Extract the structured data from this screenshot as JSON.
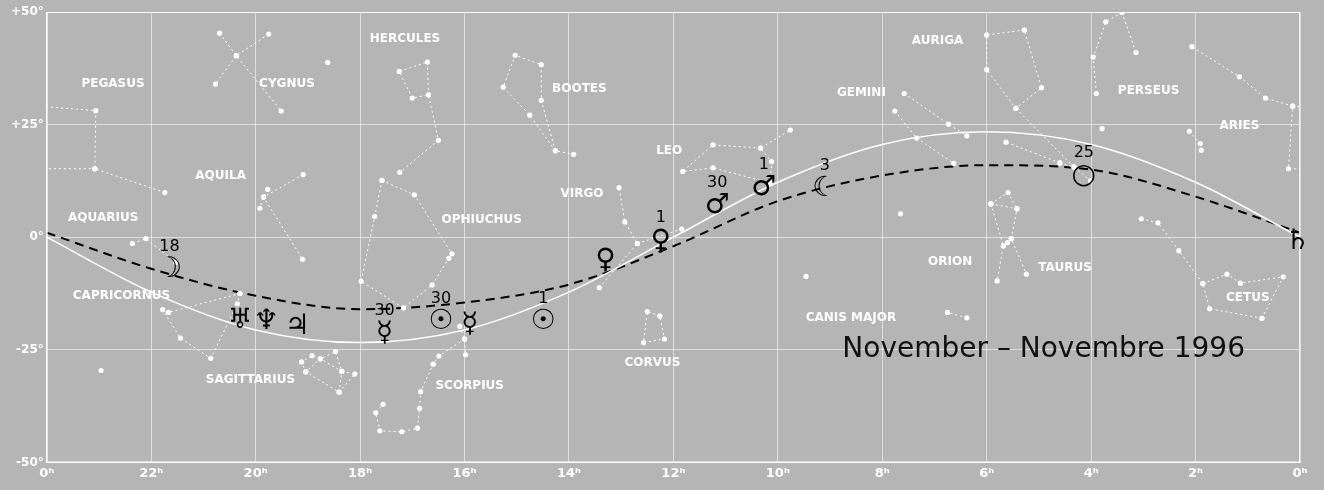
{
  "chart_data": {
    "type": "scatter",
    "title": "November – Novembre 1996",
    "xlim": [
      24,
      0
    ],
    "ylim": [
      -50,
      50
    ],
    "xticks": [
      {
        "value": 24,
        "label": "0ʰ"
      },
      {
        "value": 22,
        "label": "22ʰ"
      },
      {
        "value": 20,
        "label": "20ʰ"
      },
      {
        "value": 18,
        "label": "18ʰ"
      },
      {
        "value": 16,
        "label": "16ʰ"
      },
      {
        "value": 14,
        "label": "14ʰ"
      },
      {
        "value": 12,
        "label": "12ʰ"
      },
      {
        "value": 10,
        "label": "10ʰ"
      },
      {
        "value": 8,
        "label": "8ʰ"
      },
      {
        "value": 6,
        "label": "6ʰ"
      },
      {
        "value": 4,
        "label": "4ʰ"
      },
      {
        "value": 2,
        "label": "2ʰ"
      },
      {
        "value": 0,
        "label": "0ʰ"
      }
    ],
    "yticks": [
      {
        "value": -50,
        "label": "-50°"
      },
      {
        "value": -25,
        "label": "-25°"
      },
      {
        "value": 0,
        "label": "0°"
      },
      {
        "value": 25,
        "label": "+25°"
      },
      {
        "value": 50,
        "label": "+50°"
      }
    ],
    "grid": true,
    "ecliptic": {
      "color": "#ffffff",
      "line_style": "solid",
      "x": [
        24,
        22,
        20,
        18,
        16,
        14,
        12,
        10,
        8,
        6,
        4,
        2,
        0
      ],
      "y": [
        0,
        -12.2,
        -20.6,
        -23.4,
        -20.6,
        -12.2,
        0,
        12.2,
        20.6,
        23.4,
        20.6,
        12.2,
        0
      ]
    },
    "moon_path": {
      "color": "#000000",
      "line_style": "dashed",
      "x": [
        24,
        22,
        20,
        18,
        16,
        14,
        12,
        10,
        8,
        6,
        4,
        2,
        0
      ],
      "y": [
        1,
        -7,
        -13,
        -16,
        -14.5,
        -10.5,
        -2,
        8,
        13.7,
        16,
        15,
        9,
        1
      ]
    },
    "constellation_lines": {
      "color": "#ffffff",
      "line_style": "dotted",
      "figures": [
        [
          [
            21.74,
            9.9
          ],
          [
            23.08,
            15.2
          ],
          [
            23.06,
            28.1
          ],
          [
            24.14,
            29.1
          ],
          [
            24.22,
            15.2
          ],
          [
            23.08,
            15.2
          ]
        ],
        [
          [
            -0.94,
            28.1
          ],
          [
            0.14,
            29.1
          ],
          [
            0.22,
            15.2
          ],
          [
            -0.92,
            15.2
          ]
        ],
        [
          [
            0.14,
            29.1
          ],
          [
            0.66,
            30.9
          ],
          [
            1.16,
            35.6
          ],
          [
            2.07,
            42.3
          ]
        ],
        [
          [
            20.69,
            45.3
          ],
          [
            20.37,
            40.3
          ],
          [
            19.51,
            28.0
          ]
        ],
        [
          [
            19.75,
            45.1
          ],
          [
            20.37,
            40.3
          ],
          [
            20.77,
            34.0
          ]
        ],
        [
          [
            16.69,
            31.6
          ],
          [
            16.71,
            38.9
          ],
          [
            17.25,
            36.8
          ],
          [
            17.0,
            30.9
          ],
          [
            16.69,
            31.6
          ],
          [
            16.5,
            21.5
          ],
          [
            17.24,
            14.4
          ]
        ],
        [
          [
            14.26,
            19.2
          ],
          [
            14.75,
            27.1
          ],
          [
            15.26,
            33.3
          ],
          [
            15.03,
            40.4
          ],
          [
            14.53,
            38.3
          ],
          [
            14.53,
            30.4
          ],
          [
            14.26,
            19.2
          ],
          [
            13.91,
            18.4
          ]
        ],
        [
          [
            19.77,
            10.6
          ],
          [
            19.85,
            8.9
          ],
          [
            19.92,
            6.4
          ]
        ],
        [
          [
            19.09,
            13.9
          ],
          [
            19.85,
            8.9
          ],
          [
            19.1,
            -4.9
          ]
        ],
        [
          [
            10.14,
            12.0
          ],
          [
            10.12,
            16.8
          ],
          [
            10.33,
            19.8
          ],
          [
            9.76,
            23.8
          ]
        ],
        [
          [
            10.33,
            19.8
          ],
          [
            11.24,
            20.5
          ],
          [
            11.82,
            14.6
          ],
          [
            11.24,
            15.4
          ],
          [
            10.14,
            12.0
          ]
        ],
        [
          [
            13.42,
            -11.2
          ],
          [
            12.69,
            -1.4
          ],
          [
            12.93,
            3.4
          ],
          [
            13.04,
            11.0
          ]
        ],
        [
          [
            12.69,
            -1.4
          ],
          [
            11.84,
            1.8
          ]
        ],
        [
          [
            12.26,
            -17.5
          ],
          [
            12.5,
            -16.5
          ],
          [
            12.57,
            -23.4
          ],
          [
            12.17,
            -22.6
          ],
          [
            12.26,
            -17.5
          ]
        ],
        [
          [
            16.09,
            -19.8
          ],
          [
            16.0,
            -22.6
          ],
          [
            15.98,
            -26.1
          ]
        ],
        [
          [
            16.0,
            -22.6
          ],
          [
            16.49,
            -26.4
          ],
          [
            16.6,
            -28.2
          ],
          [
            16.84,
            -34.3
          ],
          [
            16.86,
            -38.0
          ],
          [
            16.9,
            -42.4
          ],
          [
            17.2,
            -43.2
          ],
          [
            17.62,
            -43.0
          ],
          [
            17.7,
            -39.0
          ],
          [
            17.56,
            -37.1
          ]
        ],
        [
          [
            17.58,
            12.6
          ],
          [
            16.96,
            9.4
          ],
          [
            16.24,
            -3.7
          ],
          [
            16.3,
            -4.7
          ],
          [
            16.62,
            -10.6
          ],
          [
            17.17,
            -15.7
          ],
          [
            17.98,
            -9.8
          ],
          [
            17.72,
            4.6
          ],
          [
            17.58,
            12.6
          ]
        ],
        [
          [
            18.4,
            -34.4
          ],
          [
            18.1,
            -30.4
          ],
          [
            18.35,
            -29.8
          ],
          [
            18.47,
            -25.4
          ],
          [
            18.76,
            -27.0
          ],
          [
            18.92,
            -26.3
          ],
          [
            19.12,
            -27.7
          ],
          [
            19.04,
            -29.9
          ],
          [
            18.76,
            -27.0
          ],
          [
            18.35,
            -29.8
          ],
          [
            18.4,
            -34.4
          ],
          [
            19.04,
            -29.9
          ]
        ],
        [
          [
            20.3,
            -12.5
          ],
          [
            20.35,
            -14.8
          ],
          [
            20.86,
            -26.9
          ],
          [
            21.44,
            -22.4
          ],
          [
            21.78,
            -16.1
          ],
          [
            21.67,
            -16.7
          ],
          [
            20.3,
            -12.5
          ]
        ],
        [
          [
            21.53,
            -5.6
          ],
          [
            22.1,
            -0.3
          ],
          [
            22.36,
            -1.4
          ]
        ],
        [
          [
            7.58,
            31.9
          ],
          [
            6.73,
            25.1
          ],
          [
            6.38,
            22.5
          ]
        ],
        [
          [
            7.76,
            28.0
          ],
          [
            7.34,
            22.0
          ],
          [
            6.63,
            16.4
          ]
        ],
        [
          [
            5.28,
            46.0
          ],
          [
            6.0,
            44.9
          ],
          [
            6.0,
            37.2
          ],
          [
            5.44,
            28.6
          ],
          [
            4.95,
            33.2
          ],
          [
            5.28,
            46.0
          ]
        ],
        [
          [
            3.41,
            49.9
          ],
          [
            3.72,
            47.8
          ],
          [
            3.96,
            40.0
          ],
          [
            3.9,
            31.9
          ]
        ],
        [
          [
            3.41,
            49.9
          ],
          [
            3.14,
            41.0
          ]
        ],
        [
          [
            2.12,
            23.5
          ],
          [
            1.91,
            20.8
          ],
          [
            1.89,
            19.3
          ]
        ],
        [
          [
            4.6,
            16.5
          ],
          [
            4.33,
            15.6
          ],
          [
            4.01,
            12.5
          ]
        ],
        [
          [
            4.33,
            15.6
          ],
          [
            5.44,
            28.6
          ]
        ],
        [
          [
            4.6,
            16.5
          ],
          [
            5.63,
            21.1
          ]
        ],
        [
          [
            5.92,
            7.4
          ],
          [
            5.42,
            6.3
          ],
          [
            5.53,
            -0.3
          ],
          [
            5.24,
            -8.2
          ]
        ],
        [
          [
            5.92,
            7.4
          ],
          [
            5.68,
            -1.9
          ],
          [
            5.8,
            -9.7
          ]
        ],
        [
          [
            5.53,
            -0.3
          ],
          [
            5.6,
            -1.2
          ],
          [
            5.68,
            -1.9
          ]
        ],
        [
          [
            5.92,
            7.4
          ],
          [
            5.59,
            9.9
          ],
          [
            5.42,
            6.3
          ]
        ],
        [
          [
            6.38,
            -17.9
          ],
          [
            6.75,
            -16.7
          ]
        ],
        [
          [
            3.04,
            4.1
          ],
          [
            2.72,
            3.2
          ],
          [
            2.32,
            -3.0
          ],
          [
            1.86,
            -10.3
          ],
          [
            1.73,
            -15.9
          ],
          [
            0.73,
            -18.0
          ]
        ],
        [
          [
            1.86,
            -10.3
          ],
          [
            1.4,
            -8.2
          ],
          [
            1.14,
            -10.2
          ],
          [
            0.32,
            -8.8
          ],
          [
            0.73,
            -18.0
          ]
        ]
      ]
    },
    "stars": {
      "color": "#ffffff",
      "marker": "circle",
      "x": [
        18.62,
        22.96,
        7.65,
        9.46,
        3.79
      ],
      "y": [
        38.8,
        -29.6,
        5.2,
        -8.7,
        24.1
      ]
    },
    "annotations": [
      {
        "text": "PEGASUS",
        "x": 22.73,
        "y": 34
      },
      {
        "text": "CYGNUS",
        "x": 19.4,
        "y": 34
      },
      {
        "text": "HERCULES",
        "x": 17.14,
        "y": 44
      },
      {
        "text": "BOOTES",
        "x": 13.8,
        "y": 33
      },
      {
        "text": "AQUILA",
        "x": 20.67,
        "y": 13.7
      },
      {
        "text": "AQUARIUS",
        "x": 22.92,
        "y": 4.2
      },
      {
        "text": "OPHIUCHUS",
        "x": 15.67,
        "y": 3.8
      },
      {
        "text": "VIRGO",
        "x": 13.75,
        "y": 9.7
      },
      {
        "text": "LEO",
        "x": 12.08,
        "y": 19.2
      },
      {
        "text": "GEMINI",
        "x": 8.4,
        "y": 32
      },
      {
        "text": "AURIGA",
        "x": 6.94,
        "y": 43.6
      },
      {
        "text": "PERSEUS",
        "x": 2.9,
        "y": 32.5
      },
      {
        "text": "ARIES",
        "x": 1.16,
        "y": 24.8
      },
      {
        "text": "TAURUS",
        "x": 4.5,
        "y": -6.9
      },
      {
        "text": "ORION",
        "x": 6.7,
        "y": -5.5
      },
      {
        "text": "CETUS",
        "x": 1.0,
        "y": -13.5
      },
      {
        "text": "CANIS MAJOR",
        "x": 8.6,
        "y": -17.9
      },
      {
        "text": "CORVUS",
        "x": 12.4,
        "y": -28
      },
      {
        "text": "CAPRICORNUS",
        "x": 22.57,
        "y": -13
      },
      {
        "text": "SAGITTARIUS",
        "x": 20.1,
        "y": -31.6
      },
      {
        "text": "SCORPIUS",
        "x": 15.9,
        "y": -33
      }
    ],
    "bodies": {
      "color": "#000000",
      "items": [
        {
          "symbol": "☽",
          "x": 21.65,
          "y": -7.3,
          "label": "18"
        },
        {
          "symbol": "♅",
          "x": 20.3,
          "y": -18.5
        },
        {
          "symbol": "♆",
          "x": 19.8,
          "y": -18.8
        },
        {
          "symbol": "♃",
          "x": 19.2,
          "y": -19.8
        },
        {
          "symbol": "☿",
          "x": 17.53,
          "y": -21.5,
          "label": "30"
        },
        {
          "symbol": "☉",
          "x": 16.45,
          "y": -18.8,
          "label": "30"
        },
        {
          "symbol": "☿",
          "x": 15.9,
          "y": -19.5
        },
        {
          "symbol": "☉",
          "x": 14.49,
          "y": -18.8,
          "label": "1"
        },
        {
          "symbol": "♀",
          "x": 13.3,
          "y": -5.3
        },
        {
          "symbol": "♀",
          "x": 12.24,
          "y": -0.9,
          "label": "1"
        },
        {
          "symbol": "♂",
          "x": 11.16,
          "y": 7,
          "label": "30"
        },
        {
          "symbol": "♂",
          "x": 10.27,
          "y": 11,
          "label": "1"
        },
        {
          "symbol": "☾",
          "x": 9.1,
          "y": 10.8,
          "label": "3"
        },
        {
          "symbol": "○",
          "x": 4.14,
          "y": 13.7,
          "label": "25"
        },
        {
          "symbol": "♄",
          "x": 0.05,
          "y": -1
        }
      ]
    }
  }
}
